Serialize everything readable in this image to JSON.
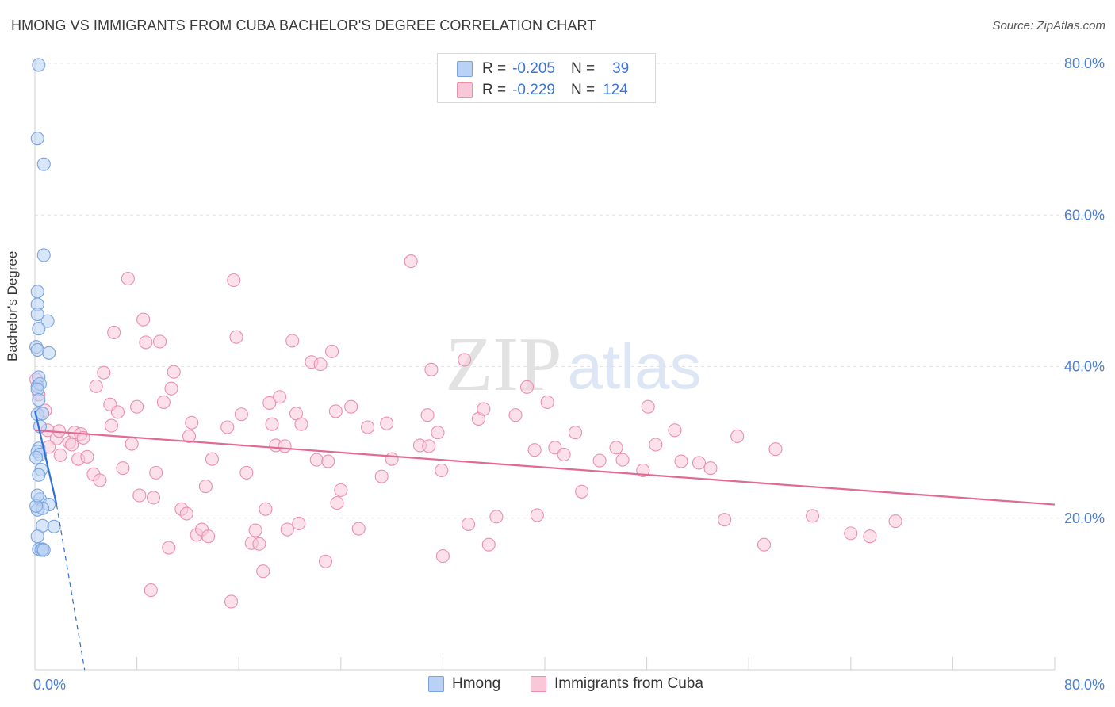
{
  "title": "HMONG VS IMMIGRANTS FROM CUBA BACHELOR'S DEGREE CORRELATION CHART",
  "source": "Source: ZipAtlas.com",
  "watermark": {
    "part1": "ZIP",
    "part2": "atlas"
  },
  "legend": {
    "r_label": "R =",
    "n_label": "N =",
    "rows": [
      {
        "name": "Hmong",
        "r": "-0.205",
        "n": "39",
        "fill": "#b8d1f4",
        "stroke": "#7aa3e0"
      },
      {
        "name": "Immigrants from Cuba",
        "r": "-0.229",
        "n": "124",
        "fill": "#f9c8d8",
        "stroke": "#eb8fae"
      }
    ]
  },
  "chart_data": {
    "type": "scatter",
    "title": "HMONG VS IMMIGRANTS FROM CUBA BACHELOR'S DEGREE CORRELATION CHART",
    "xlabel": "",
    "ylabel": "Bachelor's Degree",
    "xlim": [
      0,
      80
    ],
    "ylim": [
      0,
      80
    ],
    "x_ticks_labels": [
      "0.0%",
      "80.0%"
    ],
    "y_ticks": [
      20,
      40,
      60,
      80
    ],
    "y_ticks_labels": [
      "20.0%",
      "40.0%",
      "60.0%",
      "80.0%"
    ],
    "grid": true,
    "series": [
      {
        "name": "Hmong",
        "color": "#7aa3e0",
        "fill": "#b8d1f4",
        "trend": {
          "x0": 0,
          "y0": 34.2,
          "x1": 1.7,
          "y1": 21.8,
          "extend_to_x": 3.9,
          "extend_y": 0
        },
        "points": [
          [
            0.3,
            79.8
          ],
          [
            0.2,
            70.1
          ],
          [
            0.7,
            66.7
          ],
          [
            0.7,
            54.7
          ],
          [
            0.2,
            49.9
          ],
          [
            0.2,
            48.2
          ],
          [
            1.0,
            46.0
          ],
          [
            0.2,
            46.9
          ],
          [
            0.3,
            45.0
          ],
          [
            0.1,
            42.6
          ],
          [
            0.2,
            42.2
          ],
          [
            1.1,
            41.8
          ],
          [
            0.3,
            38.6
          ],
          [
            0.2,
            37.4
          ],
          [
            0.4,
            37.7
          ],
          [
            0.2,
            37.0
          ],
          [
            0.3,
            35.6
          ],
          [
            0.2,
            33.7
          ],
          [
            0.6,
            33.8
          ],
          [
            0.4,
            32.1
          ],
          [
            0.3,
            29.2
          ],
          [
            0.2,
            28.8
          ],
          [
            0.4,
            28.4
          ],
          [
            0.1,
            28.0
          ],
          [
            0.5,
            26.4
          ],
          [
            0.3,
            25.7
          ],
          [
            0.4,
            22.5
          ],
          [
            1.1,
            21.8
          ],
          [
            0.2,
            21.1
          ],
          [
            0.6,
            21.3
          ],
          [
            0.1,
            21.6
          ],
          [
            0.6,
            19.0
          ],
          [
            1.5,
            18.9
          ],
          [
            0.2,
            17.6
          ],
          [
            0.3,
            15.9
          ],
          [
            0.5,
            15.8
          ],
          [
            0.6,
            15.9
          ],
          [
            0.7,
            15.8
          ],
          [
            0.2,
            23.0
          ]
        ]
      },
      {
        "name": "Immigrants from Cuba",
        "color": "#eb8fae",
        "fill": "#f9c8d8",
        "trend": {
          "x0": 0,
          "y0": 31.6,
          "x1": 80,
          "y1": 21.8
        },
        "points": [
          [
            0.1,
            38.3
          ],
          [
            0.3,
            36.3
          ],
          [
            0.8,
            34.2
          ],
          [
            1.0,
            31.6
          ],
          [
            1.7,
            30.5
          ],
          [
            1.9,
            31.5
          ],
          [
            2.0,
            28.3
          ],
          [
            2.7,
            30.0
          ],
          [
            2.9,
            29.7
          ],
          [
            3.1,
            31.3
          ],
          [
            3.4,
            27.8
          ],
          [
            3.6,
            31.1
          ],
          [
            3.8,
            30.6
          ],
          [
            4.1,
            28.1
          ],
          [
            4.6,
            25.8
          ],
          [
            4.8,
            37.4
          ],
          [
            5.1,
            25.0
          ],
          [
            5.4,
            39.2
          ],
          [
            5.9,
            35.0
          ],
          [
            6.0,
            32.2
          ],
          [
            6.2,
            44.5
          ],
          [
            6.5,
            34.0
          ],
          [
            6.9,
            26.6
          ],
          [
            7.3,
            51.6
          ],
          [
            7.6,
            29.8
          ],
          [
            8.0,
            34.7
          ],
          [
            8.2,
            23.0
          ],
          [
            8.5,
            46.2
          ],
          [
            8.7,
            43.2
          ],
          [
            9.1,
            10.5
          ],
          [
            9.3,
            22.7
          ],
          [
            9.5,
            26.0
          ],
          [
            9.8,
            43.3
          ],
          [
            10.1,
            35.3
          ],
          [
            10.5,
            16.1
          ],
          [
            10.7,
            37.1
          ],
          [
            10.9,
            39.3
          ],
          [
            11.5,
            21.2
          ],
          [
            11.9,
            20.6
          ],
          [
            12.1,
            30.8
          ],
          [
            12.3,
            32.6
          ],
          [
            12.7,
            17.8
          ],
          [
            13.1,
            18.5
          ],
          [
            13.4,
            24.2
          ],
          [
            13.6,
            17.6
          ],
          [
            13.9,
            27.8
          ],
          [
            15.1,
            32.0
          ],
          [
            15.4,
            9.0
          ],
          [
            15.6,
            51.4
          ],
          [
            15.8,
            43.9
          ],
          [
            16.2,
            33.7
          ],
          [
            16.6,
            26.0
          ],
          [
            17.0,
            16.7
          ],
          [
            17.3,
            18.4
          ],
          [
            17.6,
            16.6
          ],
          [
            17.9,
            13.0
          ],
          [
            18.1,
            21.2
          ],
          [
            18.4,
            35.2
          ],
          [
            18.6,
            32.4
          ],
          [
            18.9,
            29.6
          ],
          [
            19.2,
            36.0
          ],
          [
            19.6,
            29.5
          ],
          [
            19.8,
            18.5
          ],
          [
            20.2,
            43.4
          ],
          [
            20.5,
            33.8
          ],
          [
            20.9,
            32.4
          ],
          [
            20.7,
            19.3
          ],
          [
            21.7,
            40.6
          ],
          [
            22.1,
            27.7
          ],
          [
            22.4,
            40.3
          ],
          [
            22.8,
            14.3
          ],
          [
            23.0,
            27.5
          ],
          [
            23.3,
            42.0
          ],
          [
            23.6,
            34.1
          ],
          [
            23.7,
            22.0
          ],
          [
            24.0,
            23.7
          ],
          [
            24.8,
            34.7
          ],
          [
            25.4,
            18.6
          ],
          [
            26.1,
            32.0
          ],
          [
            27.2,
            25.5
          ],
          [
            27.6,
            32.5
          ],
          [
            28.0,
            27.8
          ],
          [
            29.5,
            53.9
          ],
          [
            30.2,
            29.6
          ],
          [
            30.8,
            33.6
          ],
          [
            30.9,
            29.5
          ],
          [
            31.1,
            39.6
          ],
          [
            31.6,
            31.3
          ],
          [
            31.9,
            26.3
          ],
          [
            32.0,
            15.0
          ],
          [
            33.7,
            40.9
          ],
          [
            34.0,
            19.2
          ],
          [
            34.8,
            33.1
          ],
          [
            35.2,
            34.4
          ],
          [
            35.6,
            16.5
          ],
          [
            36.2,
            20.2
          ],
          [
            37.7,
            33.6
          ],
          [
            38.6,
            37.3
          ],
          [
            39.2,
            29.0
          ],
          [
            39.4,
            20.4
          ],
          [
            40.2,
            35.3
          ],
          [
            40.8,
            29.3
          ],
          [
            41.5,
            28.4
          ],
          [
            42.4,
            31.3
          ],
          [
            42.9,
            23.5
          ],
          [
            44.3,
            27.6
          ],
          [
            45.6,
            29.3
          ],
          [
            46.1,
            27.7
          ],
          [
            47.7,
            26.3
          ],
          [
            48.1,
            34.7
          ],
          [
            48.7,
            29.7
          ],
          [
            50.2,
            31.6
          ],
          [
            50.7,
            27.5
          ],
          [
            52.1,
            27.3
          ],
          [
            53.0,
            26.6
          ],
          [
            54.1,
            19.8
          ],
          [
            55.1,
            30.8
          ],
          [
            57.2,
            16.5
          ],
          [
            58.1,
            29.1
          ],
          [
            61.0,
            20.3
          ],
          [
            64.0,
            18.0
          ],
          [
            65.5,
            17.6
          ],
          [
            67.5,
            19.6
          ],
          [
            1.1,
            29.4
          ]
        ]
      }
    ]
  },
  "bottom_legend": [
    {
      "label": "Hmong"
    },
    {
      "label": "Immigrants from Cuba"
    }
  ]
}
